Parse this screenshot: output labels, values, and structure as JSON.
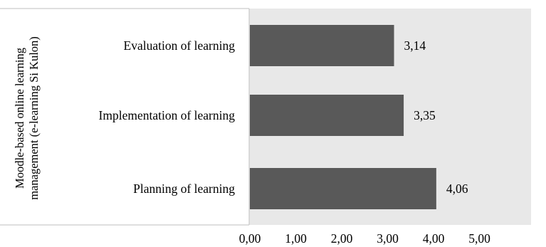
{
  "chart_data": {
    "type": "bar",
    "orientation": "horizontal",
    "categories": [
      "Evaluation of learning",
      "Implementation of learning",
      "Planning of learning"
    ],
    "values": [
      3.14,
      3.35,
      4.06
    ],
    "data_labels": [
      "3,14",
      "3,35",
      "4,06"
    ],
    "xticks": [
      "0,00",
      "1,00",
      "2,00",
      "3,00",
      "4,00",
      "5,00"
    ],
    "xlim": [
      0,
      5
    ],
    "ylabel_lines": [
      "Moodle-based online learning",
      "management (e-learning Si Kulon)"
    ],
    "xlabel": "",
    "title": "",
    "grid": false,
    "colors": {
      "bar": "#595959",
      "plot_bg": "#e8e8e8",
      "axis": "#bfbfbf"
    }
  }
}
